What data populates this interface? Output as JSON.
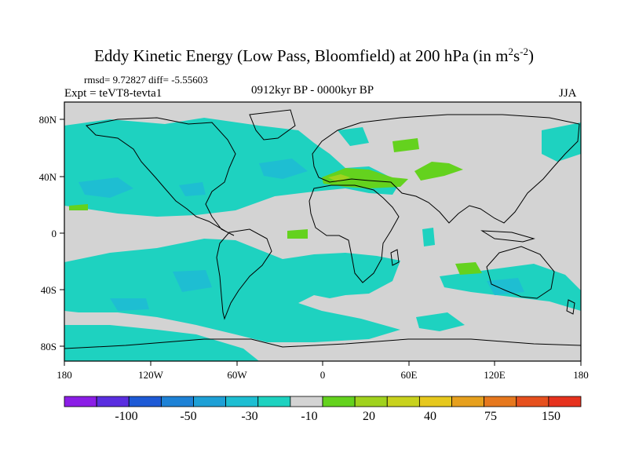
{
  "title": {
    "prefix": "Eddy Kinetic Energy (Low Pass, Bloomfield) at 200 hPa (in m",
    "sup1": "2",
    "mid": "s",
    "sup2": "-2",
    "suffix": ")"
  },
  "stats_text": "rmsd= 9.72827 diff= -5.55603",
  "experiment_text": "Expt = teVT8-tevta1",
  "period_text": "0912kyr BP - 0000kyr BP",
  "season_text": "JJA",
  "map": {
    "lat_ticks": [
      "80N",
      "40N",
      "0",
      "40S",
      "80S"
    ],
    "lon_ticks": [
      "180",
      "120W",
      "60W",
      "0",
      "60E",
      "120E",
      "180"
    ],
    "background_color": "#d3d3d3"
  },
  "colorbar": {
    "colors": [
      "#8b1ee6",
      "#5a2ee0",
      "#1e5ad6",
      "#1e82d6",
      "#1ea0d6",
      "#1ebed2",
      "#1ed2c0",
      "#d3d3d3",
      "#64d21e",
      "#a0d21e",
      "#c8d21e",
      "#e6c81e",
      "#e6a01e",
      "#e6781e",
      "#e6501e",
      "#e6321e"
    ],
    "labels": [
      "-100",
      "-50",
      "-30",
      "-10",
      "20",
      "40",
      "75",
      "150"
    ]
  }
}
